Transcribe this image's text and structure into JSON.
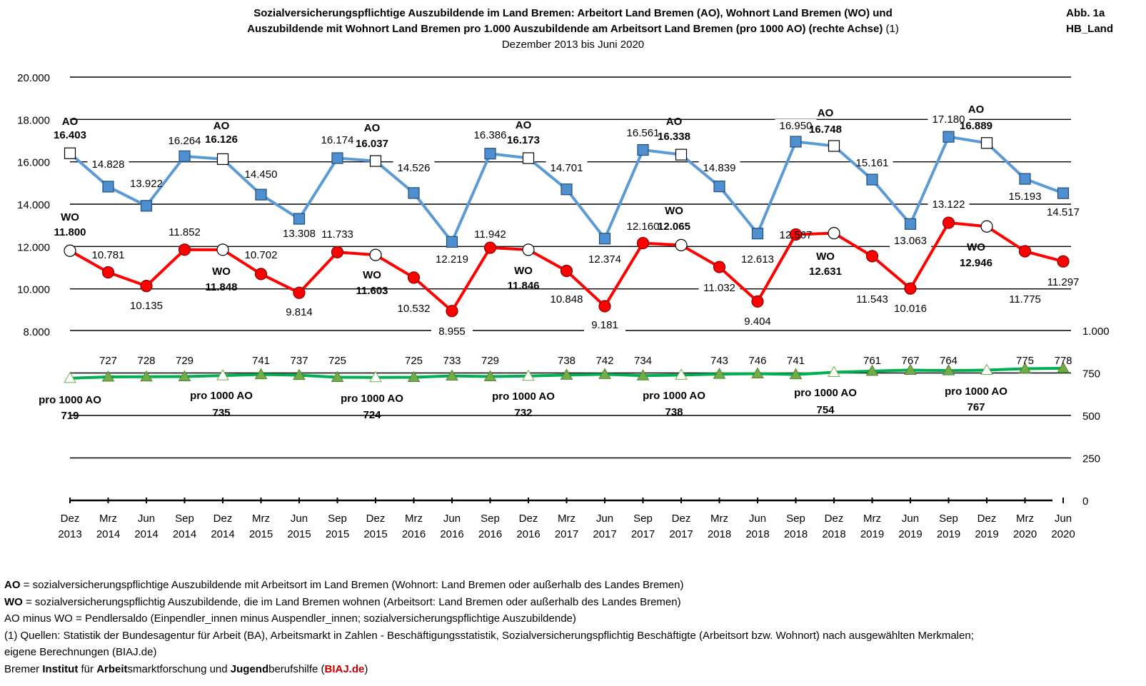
{
  "header": {
    "title_line1": "Sozialversicherungspflichtige Auszubildende im Land Bremen: Arbeitort Land Bremen (AO), Wohnort Land Bremen (WO) und",
    "title_line2": "Auszubildende mit Wohnort Land Bremen pro 1.000  Auszubildende am Arbeitsort Land Bremen (pro 1000 AO) (rechte Achse)",
    "title_line2_suffix": " (1)",
    "subtitle": "Dezember 2013 bis Juni 2020",
    "tag_line1": "Abb. 1a",
    "tag_line2": "HB_Land"
  },
  "chart_data": {
    "type": "line",
    "categories": [
      [
        "Dez",
        "2013"
      ],
      [
        "Mrz",
        "2014"
      ],
      [
        "Jun",
        "2014"
      ],
      [
        "Sep",
        "2014"
      ],
      [
        "Dez",
        "2014"
      ],
      [
        "Mrz",
        "2015"
      ],
      [
        "Jun",
        "2015"
      ],
      [
        "Sep",
        "2015"
      ],
      [
        "Dez",
        "2015"
      ],
      [
        "Mrz",
        "2016"
      ],
      [
        "Jun",
        "2016"
      ],
      [
        "Sep",
        "2016"
      ],
      [
        "Dez",
        "2016"
      ],
      [
        "Mrz",
        "2017"
      ],
      [
        "Jun",
        "2017"
      ],
      [
        "Sep",
        "2017"
      ],
      [
        "Dez",
        "2017"
      ],
      [
        "Mrz",
        "2018"
      ],
      [
        "Jun",
        "2018"
      ],
      [
        "Sep",
        "2018"
      ],
      [
        "Dez",
        "2018"
      ],
      [
        "Mrz",
        "2019"
      ],
      [
        "Jun",
        "2019"
      ],
      [
        "Sep",
        "2019"
      ],
      [
        "Dez",
        "2019"
      ],
      [
        "Mrz",
        "2020"
      ],
      [
        "Jun",
        "2020"
      ]
    ],
    "left_axis": {
      "min": 8000,
      "max": 20000,
      "ticks": [
        "8.000",
        "10.000",
        "12.000",
        "14.000",
        "16.000",
        "18.000",
        "20.000"
      ],
      "tick_values": [
        8000,
        10000,
        12000,
        14000,
        16000,
        18000,
        20000
      ]
    },
    "right_axis": {
      "min": 0,
      "max": 1000,
      "ticks": [
        "0",
        "250",
        "500",
        "750",
        "1.000"
      ],
      "tick_values": [
        0,
        250,
        500,
        750,
        1000
      ]
    },
    "series": [
      {
        "name": "AO",
        "axis": "left",
        "color": "#5b9bd5",
        "marker_color": "#4f8fcf",
        "values": [
          16403,
          14828,
          13922,
          16264,
          16126,
          14450,
          13308,
          16174,
          16037,
          14526,
          12219,
          16386,
          16173,
          14701,
          12374,
          16561,
          16338,
          14839,
          12613,
          16950,
          16748,
          15161,
          13063,
          17180,
          16889,
          15193,
          14517
        ],
        "labels": [
          "16.403",
          "14.828",
          "13.922",
          "16.264",
          "16.126",
          "14.450",
          "13.308",
          "16.174",
          "16.037",
          "14.526",
          "12.219",
          "16.386",
          "16.173",
          "14.701",
          "12.374",
          "16.561",
          "16.338",
          "14.839",
          "12.613",
          "16.950",
          "16.748",
          "15.161",
          "13.063",
          "17.180",
          "16.889",
          "15.193",
          "14.517"
        ]
      },
      {
        "name": "WO",
        "axis": "left",
        "color": "#ff0000",
        "marker_color": "#ff0000",
        "values": [
          11800,
          10781,
          10135,
          11852,
          11848,
          10702,
          9814,
          11733,
          11603,
          10532,
          8955,
          11942,
          11846,
          10848,
          9181,
          12160,
          12065,
          11032,
          9404,
          12567,
          12631,
          11543,
          10016,
          13122,
          12946,
          11775,
          11297
        ],
        "labels": [
          "11.800",
          "10.781",
          "10.135",
          "11.852",
          "11.848",
          "10.702",
          "9.814",
          "11.733",
          "11.603",
          "10.532",
          "8.955",
          "11.942",
          "11.846",
          "10.848",
          "9.181",
          "12.160",
          "12.065",
          "11.032",
          "9.404",
          "12.567",
          "12.631",
          "11.543",
          "10.016",
          "13.122",
          "12.946",
          "11.775",
          "11.297"
        ]
      },
      {
        "name": "pro 1000 AO",
        "axis": "right",
        "color": "#00b050",
        "marker_color": "#70ad47",
        "values": [
          719,
          727,
          728,
          729,
          735,
          741,
          737,
          725,
          724,
          725,
          733,
          729,
          732,
          738,
          742,
          734,
          738,
          743,
          746,
          741,
          754,
          761,
          767,
          764,
          767,
          775,
          778
        ],
        "labels": [
          "719",
          "727",
          "728",
          "729",
          "735",
          "741",
          "737",
          "725",
          "724",
          "725",
          "733",
          "729",
          "732",
          "738",
          "742",
          "734",
          "738",
          "743",
          "746",
          "741",
          "754",
          "761",
          "767",
          "764",
          "767",
          "775",
          "778"
        ]
      }
    ]
  },
  "notes": {
    "line1_bold": "AO",
    "line1_text": " = sozialversicherungspflichtige Auszubildende mit Arbeitsort im Land Bremen (Wohnort: Land Bremen oder außerhalb des Landes Bremen)",
    "line2_bold": "WO",
    "line2_text": " = sozialversicherungspflichtig Auszubildende, die im Land Bremen wohnen (Arbeitsort: Land Bremen oder außerhalb des Landes Bremen)",
    "line3": "AO minus WO = Pendlersaldo (Einpendler_innen minus Auspendler_innen; sozialversicherungspflichtige Auszubildende)",
    "line4": "(1) Quellen: Statistik der Bundesagentur für Arbeit (BA), Arbeitsmarkt in Zahlen - Beschäftigungsstatistik, Sozialversicherungspflichtig Beschäftigte (Arbeitsort bzw. Wohnort) nach ausgewählten Merkmalen;",
    "line5": "eigene Berechnungen (BIAJ.de)",
    "line6_a": "Bremer ",
    "line6_b": "Institut",
    "line6_c": " für ",
    "line6_d": "Arbeit",
    "line6_e": "smarktforschung und ",
    "line6_f": "Jugend",
    "line6_g": "berufshilfe (",
    "line6_h": "BIAJ.de",
    "line6_i": ")"
  }
}
